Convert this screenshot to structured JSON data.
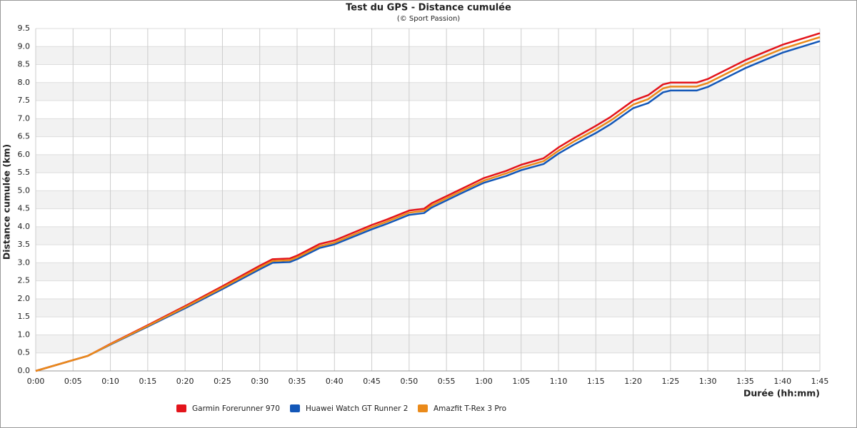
{
  "chart_data": {
    "type": "line",
    "title": "Test du GPS - Distance cumulée",
    "subtitle": "(© Sport Passion)",
    "x_label": "Durée (hh:mm)",
    "y_label": "Distance cumulée (km)",
    "x": [
      0,
      5,
      7,
      10,
      15,
      20,
      25,
      30,
      31.7,
      34,
      35,
      38,
      40,
      45,
      47,
      50,
      52,
      53,
      55,
      57,
      60,
      63,
      65,
      68,
      70,
      72,
      75,
      77,
      80,
      82,
      84,
      85,
      88.5,
      90,
      95,
      98,
      100,
      105
    ],
    "series": [
      {
        "name": "Garmin Forerunner 970",
        "color": "#e3141b",
        "values": [
          0,
          0.3,
          0.42,
          0.75,
          1.27,
          1.8,
          2.35,
          2.92,
          3.1,
          3.12,
          3.2,
          3.52,
          3.62,
          4.05,
          4.2,
          4.45,
          4.5,
          4.65,
          4.85,
          5.05,
          5.35,
          5.55,
          5.72,
          5.9,
          6.2,
          6.45,
          6.8,
          7.05,
          7.5,
          7.65,
          7.95,
          8.0,
          8.0,
          8.1,
          8.62,
          8.88,
          9.05,
          9.37
        ]
      },
      {
        "name": "Huawei Watch GT Runner 2",
        "color": "#1357b8",
        "values": [
          0,
          0.3,
          0.42,
          0.73,
          1.23,
          1.74,
          2.27,
          2.82,
          3.0,
          3.02,
          3.1,
          3.41,
          3.51,
          3.93,
          4.08,
          4.33,
          4.38,
          4.53,
          4.73,
          4.93,
          5.22,
          5.41,
          5.57,
          5.74,
          6.03,
          6.27,
          6.6,
          6.85,
          7.29,
          7.43,
          7.73,
          7.78,
          7.78,
          7.88,
          8.4,
          8.66,
          8.83,
          9.15
        ]
      },
      {
        "name": "Amazfit T-Rex 3 Pro",
        "color": "#ea8a1a",
        "values": [
          0,
          0.3,
          0.42,
          0.74,
          1.25,
          1.77,
          2.31,
          2.87,
          3.05,
          3.07,
          3.15,
          3.46,
          3.56,
          3.99,
          4.14,
          4.39,
          4.44,
          4.59,
          4.79,
          4.99,
          5.28,
          5.48,
          5.64,
          5.82,
          6.11,
          6.36,
          6.7,
          6.95,
          7.39,
          7.54,
          7.84,
          7.89,
          7.89,
          7.99,
          8.51,
          8.77,
          8.94,
          9.26
        ]
      }
    ],
    "xlim": [
      0,
      105
    ],
    "xticks": [
      {
        "value": 0,
        "label": "0:00"
      },
      {
        "value": 5,
        "label": "0:05"
      },
      {
        "value": 10,
        "label": "0:10"
      },
      {
        "value": 15,
        "label": "0:15"
      },
      {
        "value": 20,
        "label": "0:20"
      },
      {
        "value": 25,
        "label": "0:25"
      },
      {
        "value": 30,
        "label": "0:30"
      },
      {
        "value": 35,
        "label": "0:35"
      },
      {
        "value": 40,
        "label": "0:40"
      },
      {
        "value": 45,
        "label": "0:45"
      },
      {
        "value": 50,
        "label": "0:50"
      },
      {
        "value": 55,
        "label": "0:55"
      },
      {
        "value": 60,
        "label": "1:00"
      },
      {
        "value": 65,
        "label": "1:05"
      },
      {
        "value": 70,
        "label": "1:10"
      },
      {
        "value": 75,
        "label": "1:15"
      },
      {
        "value": 80,
        "label": "1:20"
      },
      {
        "value": 85,
        "label": "1:25"
      },
      {
        "value": 90,
        "label": "1:30"
      },
      {
        "value": 95,
        "label": "1:35"
      },
      {
        "value": 100,
        "label": "1:40"
      },
      {
        "value": 105,
        "label": "1:45"
      }
    ],
    "ylim": [
      0,
      9.5
    ],
    "yticks": [
      {
        "value": 0,
        "label": "0.0"
      },
      0.5,
      {
        "value": 1,
        "label": "1.0"
      },
      1.5,
      {
        "value": 2,
        "label": "2.0"
      },
      2.5,
      {
        "value": 3,
        "label": "3.0"
      },
      3.5,
      {
        "value": 4,
        "label": "4.0"
      },
      4.5,
      {
        "value": 5,
        "label": "5.0"
      },
      5.5,
      {
        "value": 6,
        "label": "6.0"
      },
      6.5,
      {
        "value": 7,
        "label": "7.0"
      },
      7.5,
      {
        "value": 8,
        "label": "8.0"
      },
      8.5,
      {
        "value": 9,
        "label": "9.0"
      },
      9.5
    ],
    "grid": true
  }
}
